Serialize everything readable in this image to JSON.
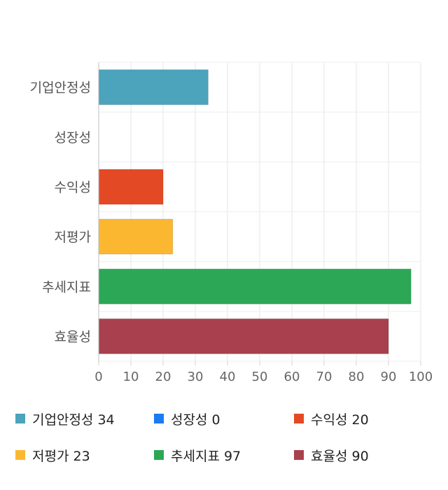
{
  "chart_data": {
    "type": "bar",
    "orientation": "horizontal",
    "categories": [
      "기업안정성",
      "성장성",
      "수익성",
      "저평가",
      "추세지표",
      "효율성"
    ],
    "values": [
      34,
      0,
      20,
      23,
      97,
      90
    ],
    "colors": [
      "#4ba3bc",
      "#1a7cf0",
      "#e34925",
      "#fcb731",
      "#2ba756",
      "#a8414d"
    ],
    "xlim": [
      0,
      100
    ],
    "xticks": [
      "0",
      "10",
      "20",
      "30",
      "40",
      "50",
      "60",
      "70",
      "80",
      "90",
      "100"
    ],
    "grid": true,
    "legend": "bottom",
    "title": "",
    "xlabel": "",
    "ylabel": ""
  },
  "legend": [
    {
      "label": "기업안정성 34",
      "color": "#4ba3bc"
    },
    {
      "label": "성장성 0",
      "color": "#1a7cf0"
    },
    {
      "label": "수익성 20",
      "color": "#e34925"
    },
    {
      "label": "저평가 23",
      "color": "#fcb731"
    },
    {
      "label": "추세지표 97",
      "color": "#2ba756"
    },
    {
      "label": "효율성 90",
      "color": "#a8414d"
    }
  ]
}
